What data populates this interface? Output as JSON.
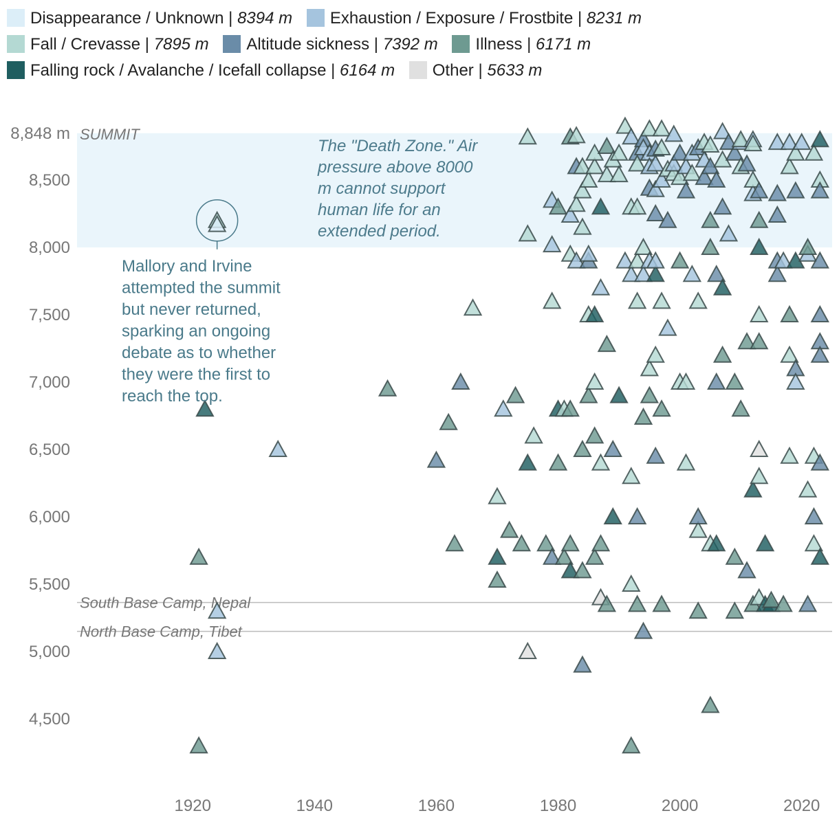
{
  "chart_data": {
    "type": "scatter",
    "title": "",
    "xlabel": "",
    "ylabel": "",
    "x_ticks": [
      1920,
      1940,
      1960,
      1980,
      2000,
      2020
    ],
    "y_ticks": [
      {
        "value": 8848,
        "label": "8,848 m"
      },
      {
        "value": 8500,
        "label": "8,500"
      },
      {
        "value": 8000,
        "label": "8,000"
      },
      {
        "value": 7500,
        "label": "7,500"
      },
      {
        "value": 7000,
        "label": "7,000"
      },
      {
        "value": 6500,
        "label": "6,500"
      },
      {
        "value": 6000,
        "label": "6,000"
      },
      {
        "value": 5500,
        "label": "5,500"
      },
      {
        "value": 5000,
        "label": "5,000"
      },
      {
        "value": 4500,
        "label": "4,500"
      }
    ],
    "summit_label": "SUMMIT",
    "xlim": [
      1901,
      2025
    ],
    "ylim": [
      4000,
      8848
    ],
    "death_zone": {
      "from": 8000,
      "to": 8848,
      "text": [
        "The \"Death Zone.\" Air",
        "pressure above 8000",
        "m cannot support",
        "human life for an",
        "extended period."
      ]
    },
    "reference_lines": [
      {
        "label": "South Base Camp, Nepal",
        "value": 5364
      },
      {
        "label": "North Base Camp, Tibet",
        "value": 5150
      }
    ],
    "annotation": {
      "year": 1924,
      "altitude": 8200,
      "text": [
        "Mallory and Irvine",
        "attempted the summit",
        "but never returned,",
        "sparking an ongoing",
        "debate as to whether",
        "they were the first to",
        "reach the top."
      ]
    },
    "series": [
      {
        "name": "Disappearance / Unknown",
        "avg": "8394 m",
        "color": "#dceef8"
      },
      {
        "name": "Exhaustion / Exposure / Frostbite",
        "avg": "8231 m",
        "color": "#a5c4de"
      },
      {
        "name": "Fall / Crevasse",
        "avg": "7895 m",
        "color": "#b4d9d3"
      },
      {
        "name": "Altitude sickness",
        "avg": "7392 m",
        "color": "#6a8ca8"
      },
      {
        "name": "Illness",
        "avg": "6171 m",
        "color": "#6e9a91"
      },
      {
        "name": "Falling rock / Avalanche / Icefall collapse",
        "avg": "6164 m",
        "color": "#1f5e60"
      },
      {
        "name": "Other",
        "avg": "5633 m",
        "color": "#e0e0e0"
      }
    ],
    "points": [
      [
        1921,
        4300,
        4
      ],
      [
        1921,
        5700,
        4
      ],
      [
        1922,
        6800,
        5
      ],
      [
        1924,
        8200,
        2
      ],
      [
        1924,
        8170,
        0
      ],
      [
        1924,
        5300,
        1
      ],
      [
        1924,
        5000,
        1
      ],
      [
        1934,
        6500,
        1
      ],
      [
        1952,
        6950,
        4
      ],
      [
        1960,
        6420,
        3
      ],
      [
        1962,
        6700,
        4
      ],
      [
        1963,
        5800,
        4
      ],
      [
        1964,
        7000,
        3
      ],
      [
        1966,
        7550,
        2
      ],
      [
        1970,
        6150,
        2
      ],
      [
        1970,
        5530,
        4
      ],
      [
        1970,
        5700,
        5
      ],
      [
        1971,
        6800,
        1
      ],
      [
        1972,
        5900,
        4
      ],
      [
        1973,
        6900,
        4
      ],
      [
        1974,
        5800,
        4
      ],
      [
        1975,
        6400,
        5
      ],
      [
        1975,
        8100,
        2
      ],
      [
        1975,
        8820,
        2
      ],
      [
        1975,
        5000,
        6
      ],
      [
        1976,
        6600,
        2
      ],
      [
        1978,
        5800,
        4
      ],
      [
        1979,
        5700,
        3
      ],
      [
        1979,
        8020,
        1
      ],
      [
        1979,
        7600,
        2
      ],
      [
        1979,
        8350,
        1
      ],
      [
        1980,
        6800,
        5
      ],
      [
        1980,
        6400,
        4
      ],
      [
        1980,
        8300,
        4
      ],
      [
        1981,
        5700,
        4
      ],
      [
        1981,
        6800,
        2
      ],
      [
        1982,
        8820,
        4
      ],
      [
        1982,
        5800,
        4
      ],
      [
        1982,
        6800,
        4
      ],
      [
        1982,
        5600,
        5
      ],
      [
        1982,
        8240,
        1
      ],
      [
        1982,
        7950,
        2
      ],
      [
        1983,
        8830,
        2
      ],
      [
        1983,
        8600,
        3
      ],
      [
        1983,
        7900,
        1
      ],
      [
        1983,
        8320,
        2
      ],
      [
        1984,
        8150,
        2
      ],
      [
        1984,
        8600,
        2
      ],
      [
        1984,
        8420,
        2
      ],
      [
        1984,
        5600,
        4
      ],
      [
        1984,
        6500,
        4
      ],
      [
        1984,
        4900,
        3
      ],
      [
        1985,
        6900,
        4
      ],
      [
        1985,
        7500,
        2
      ],
      [
        1985,
        7900,
        3
      ],
      [
        1985,
        7950,
        1
      ],
      [
        1985,
        8500,
        2
      ],
      [
        1986,
        8600,
        2
      ],
      [
        1986,
        7000,
        2
      ],
      [
        1986,
        6600,
        4
      ],
      [
        1986,
        7500,
        5
      ],
      [
        1986,
        5700,
        4
      ],
      [
        1986,
        8700,
        2
      ],
      [
        1987,
        8300,
        5
      ],
      [
        1987,
        7700,
        1
      ],
      [
        1987,
        5400,
        6
      ],
      [
        1987,
        6400,
        2
      ],
      [
        1987,
        5800,
        4
      ],
      [
        1988,
        7280,
        4
      ],
      [
        1988,
        8750,
        4
      ],
      [
        1988,
        8540,
        2
      ],
      [
        1988,
        5350,
        4
      ],
      [
        1989,
        8650,
        2
      ],
      [
        1989,
        6000,
        5
      ],
      [
        1989,
        6500,
        3
      ],
      [
        1990,
        8700,
        2
      ],
      [
        1990,
        6900,
        5
      ],
      [
        1990,
        8540,
        2
      ],
      [
        1991,
        8900,
        2
      ],
      [
        1991,
        7900,
        1
      ],
      [
        1992,
        8820,
        1
      ],
      [
        1992,
        8300,
        2
      ],
      [
        1992,
        6300,
        2
      ],
      [
        1992,
        5500,
        2
      ],
      [
        1992,
        4300,
        4
      ],
      [
        1992,
        7800,
        1
      ],
      [
        1993,
        8700,
        3
      ],
      [
        1993,
        8620,
        2
      ],
      [
        1993,
        8300,
        2
      ],
      [
        1993,
        7600,
        2
      ],
      [
        1993,
        6000,
        3
      ],
      [
        1993,
        5350,
        4
      ],
      [
        1993,
        7900,
        2
      ],
      [
        1994,
        8800,
        3
      ],
      [
        1994,
        8740,
        1
      ],
      [
        1994,
        8000,
        2
      ],
      [
        1994,
        6740,
        4
      ],
      [
        1994,
        5150,
        3
      ],
      [
        1994,
        7800,
        1
      ],
      [
        1995,
        8880,
        2
      ],
      [
        1995,
        8700,
        1
      ],
      [
        1995,
        8440,
        3
      ],
      [
        1995,
        8600,
        1
      ],
      [
        1995,
        6900,
        4
      ],
      [
        1995,
        7100,
        2
      ],
      [
        1995,
        7900,
        1
      ],
      [
        1996,
        8730,
        3
      ],
      [
        1996,
        8620,
        1
      ],
      [
        1996,
        8430,
        1
      ],
      [
        1996,
        8250,
        3
      ],
      [
        1996,
        7800,
        5
      ],
      [
        1996,
        6450,
        3
      ],
      [
        1996,
        7200,
        2
      ],
      [
        1996,
        7900,
        1
      ],
      [
        1997,
        8740,
        2
      ],
      [
        1997,
        8880,
        2
      ],
      [
        1997,
        8500,
        1
      ],
      [
        1997,
        6800,
        4
      ],
      [
        1997,
        5350,
        4
      ],
      [
        1997,
        7600,
        2
      ],
      [
        1998,
        8580,
        2
      ],
      [
        1998,
        8200,
        3
      ],
      [
        1998,
        7400,
        1
      ],
      [
        1999,
        8840,
        1
      ],
      [
        1999,
        8550,
        2
      ],
      [
        1999,
        8620,
        1
      ],
      [
        2000,
        7900,
        4
      ],
      [
        2000,
        8520,
        2
      ],
      [
        2000,
        8700,
        3
      ],
      [
        2000,
        7000,
        2
      ],
      [
        2001,
        8420,
        3
      ],
      [
        2001,
        8600,
        1
      ],
      [
        2001,
        7000,
        2
      ],
      [
        2001,
        6400,
        2
      ],
      [
        2002,
        7800,
        1
      ],
      [
        2002,
        8550,
        2
      ],
      [
        2002,
        8700,
        1
      ],
      [
        2003,
        5900,
        2
      ],
      [
        2003,
        7600,
        2
      ],
      [
        2003,
        8740,
        3
      ],
      [
        2003,
        6000,
        3
      ],
      [
        2003,
        5300,
        4
      ],
      [
        2004,
        8650,
        1
      ],
      [
        2004,
        8520,
        3
      ],
      [
        2004,
        8780,
        2
      ],
      [
        2005,
        5800,
        2
      ],
      [
        2005,
        4600,
        4
      ],
      [
        2005,
        8200,
        4
      ],
      [
        2005,
        8000,
        4
      ],
      [
        2005,
        8600,
        3
      ],
      [
        2005,
        8760,
        2
      ],
      [
        2006,
        8500,
        3
      ],
      [
        2006,
        7800,
        3
      ],
      [
        2006,
        7000,
        3
      ],
      [
        2006,
        5800,
        5
      ],
      [
        2007,
        7700,
        5
      ],
      [
        2007,
        8300,
        3
      ],
      [
        2007,
        8650,
        2
      ],
      [
        2007,
        7200,
        4
      ],
      [
        2007,
        8860,
        1
      ],
      [
        2008,
        8100,
        1
      ],
      [
        2008,
        8780,
        3
      ],
      [
        2009,
        8700,
        3
      ],
      [
        2009,
        7000,
        4
      ],
      [
        2009,
        5700,
        4
      ],
      [
        2009,
        5300,
        4
      ],
      [
        2010,
        8600,
        2
      ],
      [
        2010,
        8780,
        1
      ],
      [
        2010,
        6800,
        4
      ],
      [
        2010,
        8800,
        2
      ],
      [
        2011,
        7300,
        4
      ],
      [
        2011,
        8620,
        3
      ],
      [
        2011,
        5600,
        3
      ],
      [
        2012,
        8400,
        1
      ],
      [
        2012,
        8500,
        2
      ],
      [
        2012,
        8800,
        1
      ],
      [
        2012,
        6200,
        5
      ],
      [
        2012,
        5350,
        4
      ],
      [
        2012,
        8770,
        2
      ],
      [
        2013,
        8420,
        3
      ],
      [
        2013,
        8200,
        4
      ],
      [
        2013,
        8000,
        5
      ],
      [
        2013,
        7500,
        2
      ],
      [
        2013,
        7300,
        4
      ],
      [
        2013,
        6500,
        6
      ],
      [
        2013,
        6300,
        2
      ],
      [
        2013,
        5400,
        2
      ],
      [
        2014,
        5800,
        5
      ],
      [
        2014,
        5350,
        5
      ],
      [
        2015,
        5350,
        5
      ],
      [
        2015,
        5380,
        4
      ],
      [
        2016,
        8780,
        1
      ],
      [
        2016,
        7900,
        3
      ],
      [
        2016,
        8400,
        3
      ],
      [
        2016,
        8240,
        3
      ],
      [
        2016,
        7800,
        3
      ],
      [
        2017,
        5350,
        4
      ],
      [
        2017,
        7900,
        1
      ],
      [
        2018,
        7500,
        4
      ],
      [
        2018,
        7200,
        2
      ],
      [
        2018,
        6450,
        2
      ],
      [
        2018,
        8600,
        2
      ],
      [
        2018,
        8780,
        1
      ],
      [
        2019,
        8700,
        2
      ],
      [
        2019,
        8420,
        3
      ],
      [
        2019,
        7900,
        5
      ],
      [
        2019,
        7100,
        3
      ],
      [
        2019,
        7000,
        1
      ],
      [
        2020,
        8780,
        1
      ],
      [
        2021,
        7950,
        1
      ],
      [
        2021,
        8000,
        4
      ],
      [
        2021,
        6200,
        2
      ],
      [
        2021,
        5350,
        3
      ],
      [
        2022,
        8700,
        2
      ],
      [
        2022,
        6450,
        2
      ],
      [
        2022,
        6000,
        3
      ],
      [
        2022,
        5800,
        2
      ],
      [
        2023,
        8800,
        5
      ],
      [
        2023,
        8500,
        2
      ],
      [
        2023,
        8420,
        3
      ],
      [
        2023,
        7900,
        3
      ],
      [
        2023,
        7500,
        3
      ],
      [
        2023,
        7300,
        3
      ],
      [
        2023,
        7200,
        3
      ],
      [
        2023,
        6400,
        3
      ],
      [
        2023,
        5700,
        5
      ]
    ]
  }
}
